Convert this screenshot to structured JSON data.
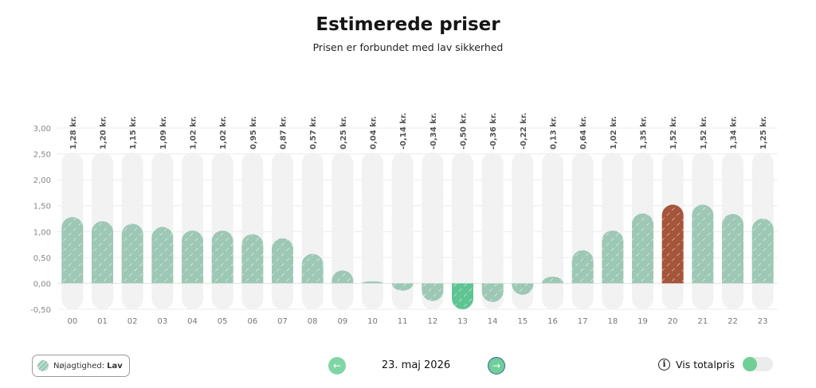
{
  "header": {
    "title": "Estimerede priser",
    "subtitle": "Prisen er forbundet med lav sikkerhed"
  },
  "chart_data": {
    "type": "bar",
    "categories": [
      "00",
      "01",
      "02",
      "03",
      "04",
      "05",
      "06",
      "07",
      "08",
      "09",
      "10",
      "11",
      "12",
      "13",
      "14",
      "15",
      "16",
      "17",
      "18",
      "19",
      "20",
      "21",
      "22",
      "23"
    ],
    "values": [
      1.28,
      1.2,
      1.15,
      1.09,
      1.02,
      1.02,
      0.95,
      0.87,
      0.57,
      0.25,
      0.04,
      -0.14,
      -0.34,
      -0.5,
      -0.36,
      -0.22,
      0.13,
      0.64,
      1.02,
      1.35,
      1.52,
      1.52,
      1.34,
      1.25
    ],
    "value_labels": [
      "1,28 kr.",
      "1,20 kr.",
      "1,15 kr.",
      "1,09 kr.",
      "1,02 kr.",
      "1,02 kr.",
      "0,95 kr.",
      "0,87 kr.",
      "0,57 kr.",
      "0,25 kr.",
      "0,04 kr.",
      "-0,14 kr.",
      "-0,34 kr.",
      "-0,50 kr.",
      "-0,36 kr.",
      "-0,22 kr.",
      "0,13 kr.",
      "0,64 kr.",
      "1,02 kr.",
      "1,35 kr.",
      "1,52 kr.",
      "1,52 kr.",
      "1,34 kr.",
      "1,25 kr."
    ],
    "yticks": [
      "3,00",
      "2,50",
      "2,00",
      "1,50",
      "1,00",
      "0,50",
      "0,00",
      "-0,50"
    ],
    "ylim": [
      -0.5,
      3.0
    ],
    "highlighted_category": "20",
    "colors": {
      "default_bar": "#9dc8b5",
      "negative_min_bar": "#5fc493",
      "highlight_bar": "#a4553a",
      "background_bar": "#f3f3f3"
    },
    "grid": true
  },
  "footer": {
    "accuracy_label": "Nøjagtighed:",
    "accuracy_value": "Lav",
    "date": "23. maj 2026",
    "prev_icon": "arrow-left-icon",
    "next_icon": "arrow-right-icon",
    "total_label": "Vis totalpris",
    "info_icon": "info-icon"
  }
}
